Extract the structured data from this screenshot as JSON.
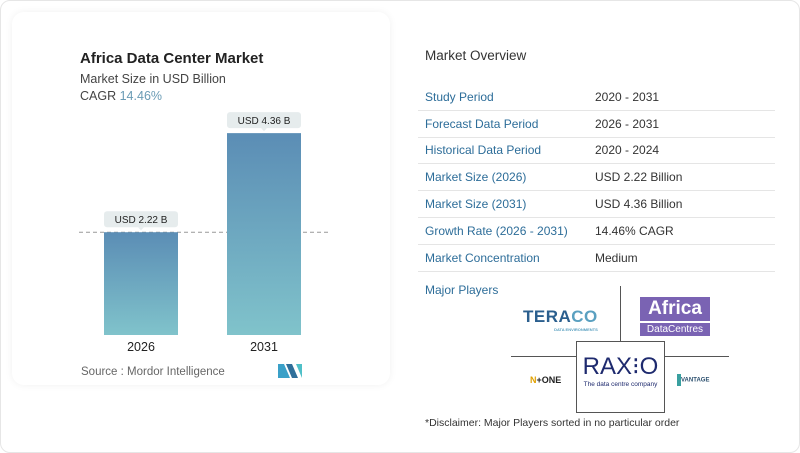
{
  "chart_data": {
    "type": "bar",
    "title": "Africa Data Center Market",
    "subtitle": "Market Size in USD Billion",
    "cagr_label": "CAGR",
    "cagr_value": "14.46%",
    "categories": [
      "2026",
      "2031"
    ],
    "values": [
      2.22,
      4.36
    ],
    "data_labels": [
      "USD 2.22 B",
      "USD 4.36 B"
    ],
    "colors": {
      "bar_top": "#5b8db5",
      "bar_bottom": "#80c3cb"
    },
    "reference_line": "dashed at 2026 value",
    "source": "Source :  Mordor Intelligence"
  },
  "overview": {
    "title": "Market Overview",
    "rows": [
      {
        "label": "Study Period",
        "value": "2020 - 2031"
      },
      {
        "label": "Forecast Data Period",
        "value": "2026 - 2031"
      },
      {
        "label": "Historical Data Period",
        "value": "2020 - 2024"
      },
      {
        "label": "Market Size (2026)",
        "value": "USD 2.22 Billion"
      },
      {
        "label": "Market Size (2031)",
        "value": "USD 4.36 Billion"
      },
      {
        "label": "Growth Rate (2026 - 2031)",
        "value": "14.46% CAGR"
      },
      {
        "label": "Market Concentration",
        "value": "Medium"
      }
    ]
  },
  "players": {
    "title": "Major Players",
    "logos": [
      "TERACO DATA ENVIRONMENTS",
      "Africa DataCentres",
      "RAXIO The data centre company",
      "N+ONE DATACENTERS",
      "VANTAGE DATA CENTERS"
    ]
  },
  "disclaimer": "*Disclaimer: Major Players sorted in no particular order"
}
